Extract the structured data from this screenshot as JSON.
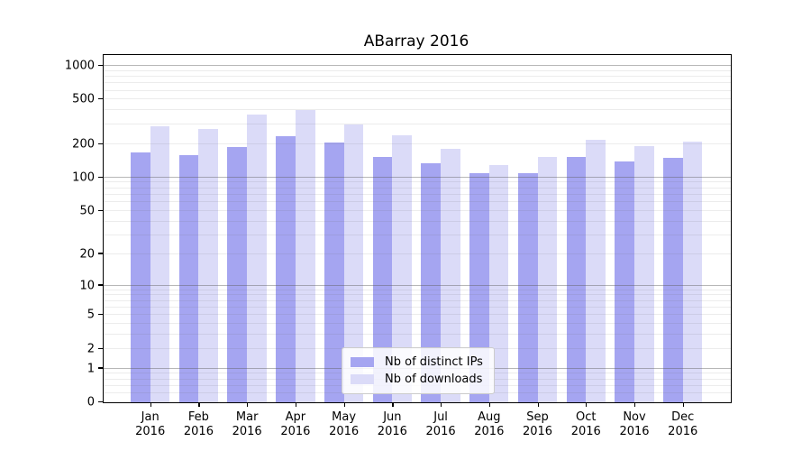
{
  "chart_data": {
    "type": "bar",
    "title": "ABarray 2016",
    "categories": [
      "Jan 2016",
      "Feb 2016",
      "Mar 2016",
      "Apr 2016",
      "May 2016",
      "Jun 2016",
      "Jul 2016",
      "Aug 2016",
      "Sep 2016",
      "Oct 2016",
      "Nov 2016",
      "Dec 2016"
    ],
    "series": [
      {
        "name": "Nb of distinct IPs",
        "color": "#a5a5f1",
        "values": [
          168,
          160,
          187,
          235,
          205,
          152,
          134,
          110,
          110,
          152,
          140,
          151
        ]
      },
      {
        "name": "Nb of downloads",
        "color": "#dbdbf8",
        "values": [
          288,
          273,
          365,
          400,
          300,
          240,
          182,
          130,
          153,
          220,
          193,
          209
        ]
      }
    ],
    "y_axis": {
      "scale": "log10(1+x)",
      "ymax": 1250,
      "ticks": [
        0,
        1,
        2,
        5,
        10,
        20,
        50,
        100,
        200,
        500,
        1000
      ],
      "major_gridlines": [
        1,
        10,
        100,
        1000
      ],
      "minor_gridlines": [
        0.2,
        0.4,
        0.6,
        0.8,
        2,
        3,
        4,
        5,
        6,
        7,
        8,
        9,
        20,
        30,
        40,
        50,
        60,
        70,
        80,
        90,
        200,
        300,
        400,
        500,
        600,
        700,
        800,
        900
      ]
    },
    "legend_position": "bottom-center",
    "grid": "on"
  }
}
